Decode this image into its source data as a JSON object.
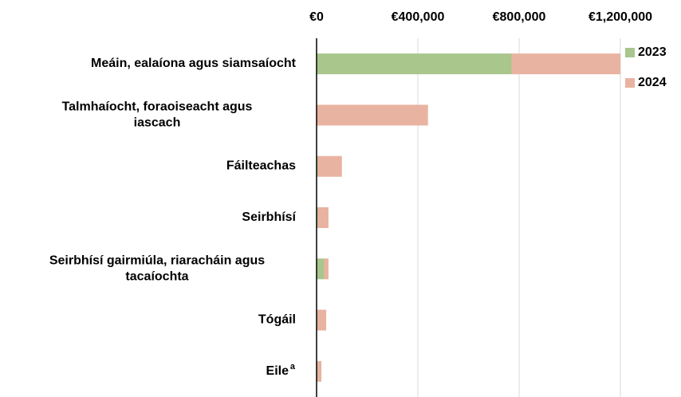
{
  "chart_data": {
    "type": "bar_stacked_horizontal",
    "categories": [
      "Meáin, ealaíona agus siamsaíocht",
      "Talmhaíocht, foraoiseacht agus\niascach",
      "Fáilteachas",
      "Seirbhísí",
      "Seirbhísí gairmiúla, riaracháin agus\ntacaíochta",
      "Tógáil",
      "Eile"
    ],
    "category_marks": [
      null,
      null,
      null,
      null,
      null,
      null,
      "a"
    ],
    "series": [
      {
        "name": "2023",
        "color": "#a9c68d",
        "values": [
          770000,
          0,
          5000,
          5000,
          30000,
          3000,
          3000
        ]
      },
      {
        "name": "2024",
        "color": "#e8b3a0",
        "values": [
          430000,
          440000,
          95000,
          42000,
          17000,
          35000,
          16000
        ]
      }
    ],
    "xlim": [
      0,
      1350000
    ],
    "xticks": [
      {
        "value": 0,
        "label": "€0"
      },
      {
        "value": 400000,
        "label": "€400,000"
      },
      {
        "value": 800000,
        "label": "€800,000"
      },
      {
        "value": 1200000,
        "label": "€1,200,000"
      }
    ],
    "grid": true,
    "legend": "top-right"
  }
}
